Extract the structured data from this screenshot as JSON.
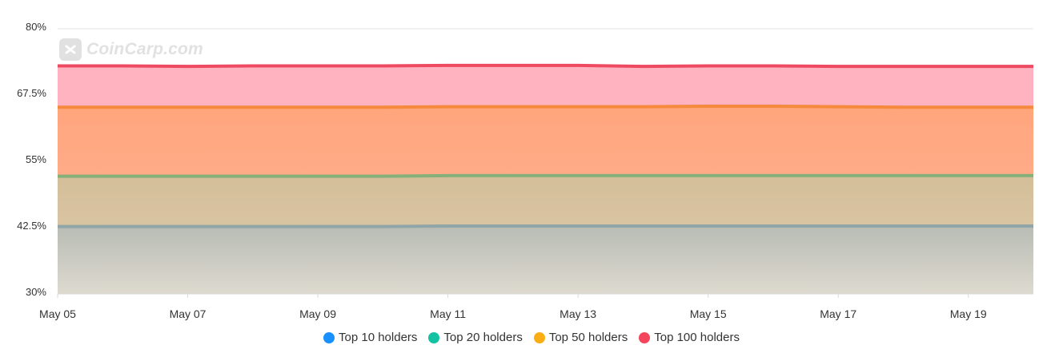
{
  "watermark": {
    "text": "CoinCarp.com",
    "icon": "coincarp-logo-icon"
  },
  "chart_data": {
    "type": "area",
    "stacked": false,
    "x": [
      "May 05",
      "May 06",
      "May 07",
      "May 08",
      "May 09",
      "May 10",
      "May 11",
      "May 12",
      "May 13",
      "May 14",
      "May 15",
      "May 16",
      "May 17",
      "May 18",
      "May 19",
      "May 20"
    ],
    "xticks": [
      "May 05",
      "May 07",
      "May 09",
      "May 11",
      "May 13",
      "May 15",
      "May 17",
      "May 19"
    ],
    "yticks": [
      "30%",
      "42.5%",
      "55%",
      "67.5%",
      "80%"
    ],
    "ylim": [
      30,
      80
    ],
    "grid": true,
    "legend_position": "bottom",
    "series": [
      {
        "name": "Top 10 holders",
        "color": "#1890ff",
        "line_color": "#8fa5a8",
        "values": [
          42.7,
          42.7,
          42.7,
          42.7,
          42.7,
          42.7,
          42.8,
          42.8,
          42.8,
          42.8,
          42.8,
          42.8,
          42.8,
          42.8,
          42.8,
          42.8
        ]
      },
      {
        "name": "Top 20 holders",
        "color": "#13c2a3",
        "line_color": "#86b07a",
        "values": [
          52.2,
          52.2,
          52.2,
          52.2,
          52.2,
          52.2,
          52.3,
          52.3,
          52.3,
          52.3,
          52.3,
          52.3,
          52.3,
          52.3,
          52.3,
          52.3
        ]
      },
      {
        "name": "Top 50 holders",
        "color": "#faad14",
        "line_color": "#f58a3c",
        "values": [
          65.2,
          65.2,
          65.2,
          65.2,
          65.2,
          65.2,
          65.3,
          65.3,
          65.3,
          65.3,
          65.4,
          65.4,
          65.3,
          65.2,
          65.2,
          65.2
        ]
      },
      {
        "name": "Top 100 holders",
        "color": "#f5455c",
        "line_color": "#ee4a61",
        "values": [
          73.0,
          73.0,
          72.9,
          73.0,
          73.0,
          73.0,
          73.1,
          73.1,
          73.1,
          72.9,
          73.0,
          73.0,
          72.9,
          72.9,
          72.9,
          72.9
        ]
      }
    ]
  }
}
